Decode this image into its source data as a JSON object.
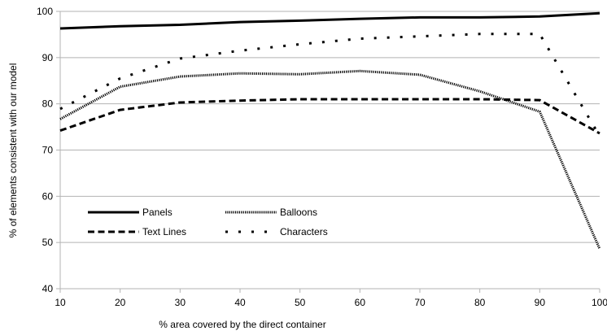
{
  "chart_data": {
    "type": "line",
    "xlabel": "% area covered by the direct container",
    "ylabel": "% of elements consistent with our model",
    "xlim": [
      10,
      100
    ],
    "ylim": [
      40,
      100
    ],
    "x_ticks": [
      "10",
      "20",
      "30",
      "40",
      "50",
      "60",
      "70",
      "80",
      "90",
      "100"
    ],
    "y_ticks": [
      "40",
      "50",
      "60",
      "70",
      "80",
      "90",
      "100"
    ],
    "grid": "horizontal",
    "legend_position": "bottom-left-inside",
    "series": [
      {
        "name": "Panels",
        "style": "solid",
        "color": "#000000",
        "x": [
          10,
          20,
          30,
          40,
          50,
          60,
          70,
          80,
          90,
          100
        ],
        "y": [
          96.3,
          96.8,
          97.1,
          97.7,
          98.0,
          98.4,
          98.7,
          98.7,
          98.9,
          99.6
        ]
      },
      {
        "name": "Balloons",
        "style": "dotted-dense",
        "color": "#000000",
        "x": [
          10,
          20,
          30,
          40,
          50,
          60,
          70,
          80,
          90,
          100
        ],
        "y": [
          76.7,
          83.7,
          85.9,
          86.6,
          86.4,
          87.1,
          86.3,
          82.7,
          78.3,
          48.6
        ]
      },
      {
        "name": "Text Lines",
        "style": "dashed",
        "color": "#000000",
        "x": [
          10,
          20,
          30,
          40,
          50,
          60,
          70,
          80,
          90,
          100
        ],
        "y": [
          74.2,
          78.7,
          80.3,
          80.7,
          81.0,
          81.0,
          81.0,
          81.0,
          80.8,
          73.6
        ]
      },
      {
        "name": "Characters",
        "style": "dotted-sparse",
        "color": "#000000",
        "x": [
          10,
          20,
          30,
          40,
          50,
          60,
          70,
          80,
          90,
          100
        ],
        "y": [
          78.9,
          85.5,
          89.8,
          91.5,
          92.9,
          94.1,
          94.6,
          95.1,
          95.1,
          73.0
        ]
      }
    ]
  }
}
